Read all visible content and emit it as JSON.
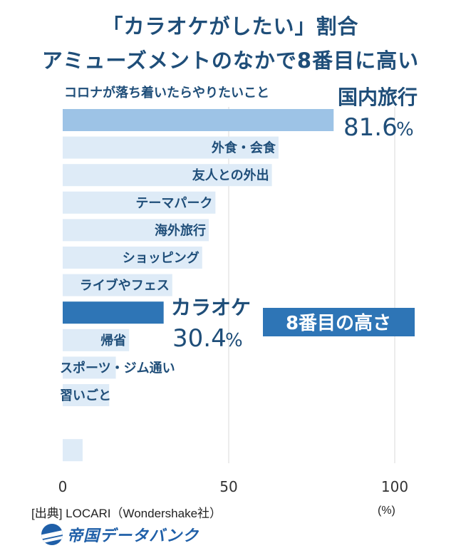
{
  "title_line1": "「カラオケがしたい」割合",
  "title_line2": "アミューズメントのなかで8番目に高い",
  "source": "[出典] LOCARI（Wondershake社）",
  "logo_text": "帝国データバンク",
  "colors": {
    "top_bar": "#9dc3e6",
    "highlight_bar": "#2e75b6",
    "other_bar": "#deebf7",
    "text": "#1f4e79",
    "badge": "#2e75b6"
  },
  "chart_data": {
    "type": "bar",
    "orientation": "horizontal",
    "subtitle": "コロナが落ち着いたらやりたいこと",
    "categories": [
      "国内旅行",
      "外食・会食",
      "友人との外出",
      "テーマパーク",
      "海外旅行",
      "ショッピング",
      "ライブやフェス",
      "カラオケ",
      "帰省",
      "スポーツ・ジム通い",
      "習いごと",
      "",
      ""
    ],
    "values": [
      81.6,
      65,
      63,
      46,
      44,
      42,
      33,
      30.4,
      20,
      16,
      14,
      0,
      6
    ],
    "highlight": [
      {
        "index": 0,
        "name": "国内旅行",
        "value": "81.6",
        "unit": "%"
      },
      {
        "index": 7,
        "name": "カラオケ",
        "value": "30.4",
        "unit": "%"
      }
    ],
    "badge": "8番目の高さ",
    "x_ticks": [
      "0",
      "50",
      "100"
    ],
    "xlim": [
      0,
      100
    ],
    "x_unit": "(%)",
    "grid": true
  }
}
